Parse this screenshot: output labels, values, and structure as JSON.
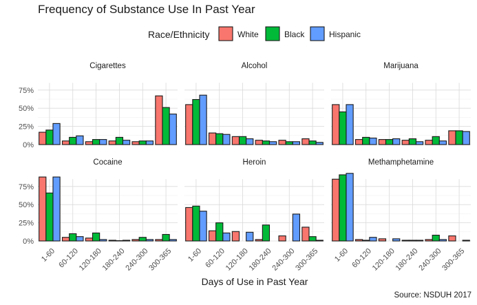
{
  "chart_data": {
    "type": "bar",
    "title": "Frequency of Substance Use In Past Year",
    "xlabel": "Days of Use in Past Year",
    "ylabel": "",
    "caption": "Source: NSDUH 2017",
    "legend": {
      "title": "Race/Ethnicity",
      "position": "top",
      "entries": [
        {
          "name": "White",
          "color": "#F8766D"
        },
        {
          "name": "Black",
          "color": "#00BA38"
        },
        {
          "name": "Hispanic",
          "color": "#619CFF"
        }
      ]
    },
    "categories": [
      "1-60",
      "60-120",
      "120-180",
      "180-240",
      "240-300",
      "300-365"
    ],
    "ylim": [
      0,
      0.85
    ],
    "yticks": [
      0,
      0.25,
      0.5,
      0.75
    ],
    "ytick_labels": [
      "0%",
      "25%",
      "50%",
      "75%"
    ],
    "grid": true,
    "panels": [
      {
        "name": "Cigarettes",
        "series": [
          {
            "name": "White",
            "values": [
              0.17,
              0.05,
              0.04,
              0.05,
              0.04,
              0.67
            ]
          },
          {
            "name": "Black",
            "values": [
              0.2,
              0.1,
              0.07,
              0.1,
              0.05,
              0.51
            ]
          },
          {
            "name": "Hispanic",
            "values": [
              0.29,
              0.12,
              0.07,
              0.06,
              0.05,
              0.42
            ]
          }
        ]
      },
      {
        "name": "Alcohol",
        "series": [
          {
            "name": "White",
            "values": [
              0.55,
              0.16,
              0.11,
              0.06,
              0.06,
              0.08
            ]
          },
          {
            "name": "Black",
            "values": [
              0.62,
              0.15,
              0.11,
              0.05,
              0.04,
              0.05
            ]
          },
          {
            "name": "Hispanic",
            "values": [
              0.68,
              0.14,
              0.08,
              0.04,
              0.04,
              0.03
            ]
          }
        ]
      },
      {
        "name": "Marijuana",
        "series": [
          {
            "name": "White",
            "values": [
              0.55,
              0.07,
              0.07,
              0.06,
              0.06,
              0.19
            ]
          },
          {
            "name": "Black",
            "values": [
              0.45,
              0.1,
              0.07,
              0.08,
              0.11,
              0.19
            ]
          },
          {
            "name": "Hispanic",
            "values": [
              0.55,
              0.09,
              0.08,
              0.04,
              0.05,
              0.18
            ]
          }
        ]
      },
      {
        "name": "Cocaine",
        "series": [
          {
            "name": "White",
            "values": [
              0.88,
              0.05,
              0.04,
              0.01,
              0.02,
              0.02
            ]
          },
          {
            "name": "Black",
            "values": [
              0.66,
              0.1,
              0.11,
              0.005,
              0.05,
              0.09
            ]
          },
          {
            "name": "Hispanic",
            "values": [
              0.88,
              0.06,
              0.02,
              0.01,
              0.02,
              0.02
            ]
          }
        ]
      },
      {
        "name": "Heroin",
        "series": [
          {
            "name": "White",
            "values": [
              0.46,
              0.14,
              0.13,
              0.02,
              0.07,
              0.19
            ]
          },
          {
            "name": "Black",
            "values": [
              0.48,
              0.25,
              0.0,
              0.22,
              0.0,
              0.06
            ]
          },
          {
            "name": "Hispanic",
            "values": [
              0.41,
              0.11,
              0.12,
              0.0,
              0.37,
              0.01
            ]
          }
        ]
      },
      {
        "name": "Methamphetamine",
        "series": [
          {
            "name": "White",
            "values": [
              0.85,
              0.02,
              0.03,
              0.01,
              0.02,
              0.07
            ]
          },
          {
            "name": "Black",
            "values": [
              0.91,
              0.01,
              0.0,
              0.01,
              0.08,
              0.0
            ]
          },
          {
            "name": "Hispanic",
            "values": [
              0.93,
              0.05,
              0.03,
              0.01,
              0.02,
              0.01
            ]
          }
        ]
      }
    ]
  }
}
